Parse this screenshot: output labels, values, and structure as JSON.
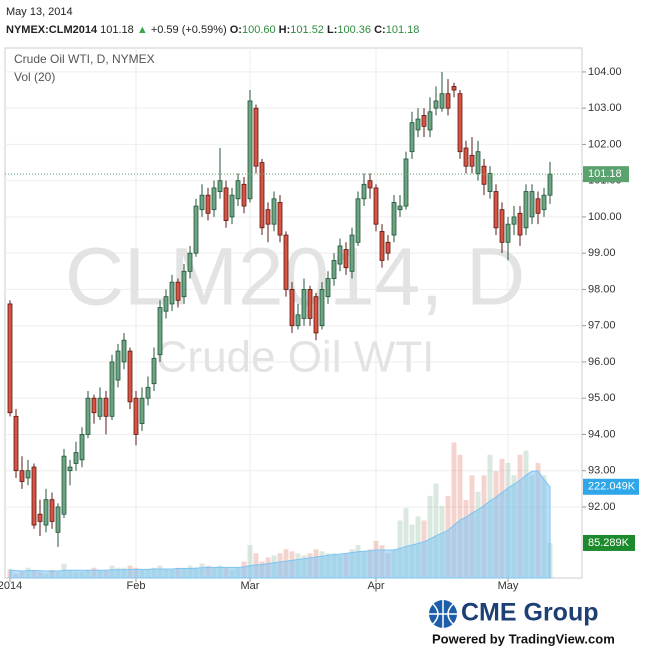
{
  "header": {
    "date": "May 13, 2014",
    "symbol": "NYMEX:CLM2014",
    "last": "101.18",
    "arrow": "▲",
    "change": "+0.59 (+0.59%)",
    "o_key": "O:",
    "o": "100.60",
    "h_key": "H:",
    "h": "101.52",
    "l_key": "L:",
    "l": "100.36",
    "c_key": "C:",
    "c": "101.18"
  },
  "footer": {
    "brand": "CME Group",
    "powered": "Powered by TradingView.com"
  },
  "chart_data": {
    "type": "candlestick",
    "title": "Crude Oil WTI, D, NYMEX",
    "watermark": [
      "CLM2014, D",
      "Crude Oil WTI"
    ],
    "categories": [
      "2014",
      null,
      null,
      null,
      null,
      null,
      null,
      null,
      null,
      null,
      null,
      null,
      null,
      null,
      null,
      null,
      null,
      null,
      null,
      null,
      null,
      "Feb",
      null,
      null,
      null,
      null,
      null,
      null,
      null,
      null,
      null,
      null,
      null,
      null,
      null,
      null,
      null,
      null,
      null,
      null,
      "Mar",
      null,
      null,
      null,
      null,
      null,
      null,
      null,
      null,
      null,
      null,
      null,
      null,
      null,
      null,
      null,
      null,
      null,
      null,
      null,
      null,
      "Apr",
      null,
      null,
      null,
      null,
      null,
      null,
      null,
      null,
      null,
      null,
      null,
      null,
      null,
      null,
      null,
      null,
      null,
      null,
      null,
      null,
      null,
      "May",
      null,
      null,
      null,
      null,
      null,
      null,
      null
    ],
    "open": [
      97.6,
      94.5,
      93.0,
      92.8,
      93.1,
      91.8,
      91.5,
      92.2,
      91.3,
      91.8,
      93.0,
      93.2,
      93.3,
      94.0,
      95.0,
      94.5,
      95.0,
      94.5,
      95.5,
      96.0,
      96.3,
      95.0,
      94.3,
      95.0,
      95.4,
      96.2,
      97.4,
      97.6,
      98.2,
      97.8,
      98.5,
      99.0,
      100.2,
      100.6,
      100.2,
      100.7,
      100.8,
      100.0,
      100.5,
      100.9,
      100.5,
      103.0,
      101.5,
      100.2,
      99.8,
      100.4,
      99.5,
      98.0,
      97.0,
      97.2,
      98.0,
      97.8,
      97.0,
      97.8,
      98.3,
      98.7,
      99.1,
      98.5,
      99.3,
      100.5,
      101.0,
      100.8,
      99.6,
      99.3,
      99.5,
      100.2,
      100.3,
      101.8,
      102.4,
      102.8,
      102.4,
      103.0,
      103.0,
      103.4,
      103.6,
      103.4,
      101.9,
      101.7,
      101.2,
      101.4,
      100.7,
      100.7,
      100.2,
      99.3,
      99.8,
      100.1,
      99.7,
      100.0,
      100.5,
      100.2,
      100.6
    ],
    "high": [
      97.7,
      94.7,
      93.4,
      93.3,
      93.2,
      92.2,
      92.5,
      92.4,
      92.1,
      93.6,
      93.3,
      93.8,
      94.2,
      95.2,
      95.1,
      95.3,
      95.2,
      96.2,
      96.5,
      96.8,
      96.4,
      95.2,
      95.3,
      95.6,
      96.4,
      97.7,
      98.0,
      98.4,
      98.3,
      98.7,
      99.2,
      100.5,
      100.9,
      100.8,
      101.0,
      101.9,
      101.0,
      100.8,
      101.2,
      101.1,
      103.5,
      103.1,
      101.6,
      100.4,
      100.7,
      100.6,
      99.6,
      98.2,
      97.6,
      98.3,
      98.1,
      97.9,
      98.2,
      98.5,
      99.0,
      99.4,
      99.3,
      99.7,
      100.7,
      101.2,
      101.2,
      100.9,
      99.8,
      99.5,
      100.6,
      100.6,
      101.8,
      102.9,
      103.0,
      103.0,
      103.3,
      103.6,
      104.0,
      103.8,
      103.7,
      103.5,
      102.1,
      102.2,
      102.1,
      101.6,
      101.4,
      100.9,
      100.4,
      100.0,
      100.3,
      100.3,
      100.9,
      100.9,
      100.7,
      100.8,
      101.52
    ],
    "low": [
      94.5,
      92.8,
      92.5,
      92.6,
      91.4,
      91.2,
      91.3,
      91.4,
      90.9,
      91.7,
      92.6,
      93.0,
      93.1,
      93.9,
      94.3,
      94.4,
      94.0,
      94.4,
      95.3,
      95.8,
      94.7,
      93.7,
      94.1,
      94.8,
      95.2,
      96.0,
      97.2,
      97.4,
      97.5,
      97.6,
      98.3,
      98.9,
      100.0,
      99.9,
      100.0,
      100.5,
      99.7,
      99.8,
      100.3,
      100.1,
      100.4,
      101.2,
      99.5,
      99.3,
      99.6,
      99.3,
      97.8,
      96.8,
      96.9,
      97.0,
      97.0,
      96.6,
      96.9,
      97.6,
      98.1,
      98.5,
      98.4,
      98.3,
      99.2,
      100.3,
      100.5,
      99.6,
      98.6,
      98.8,
      99.3,
      100.0,
      100.2,
      101.6,
      102.2,
      102.2,
      102.2,
      102.8,
      102.9,
      102.8,
      103.3,
      101.6,
      101.2,
      101.2,
      101.0,
      100.6,
      100.5,
      99.5,
      99.0,
      98.8,
      99.5,
      99.2,
      99.5,
      99.8,
      99.8,
      100.0,
      100.36
    ],
    "close": [
      94.6,
      93.0,
      92.7,
      93.0,
      91.5,
      91.6,
      92.2,
      91.6,
      92.0,
      93.4,
      93.1,
      93.5,
      94.0,
      95.0,
      94.6,
      95.0,
      94.5,
      96.0,
      96.3,
      96.6,
      94.9,
      94.0,
      95.0,
      95.3,
      96.1,
      97.5,
      97.8,
      98.2,
      97.7,
      98.5,
      99.0,
      100.3,
      100.6,
      100.1,
      100.8,
      101.0,
      99.9,
      100.6,
      101.0,
      100.3,
      103.2,
      101.4,
      99.7,
      99.8,
      100.5,
      99.5,
      98.0,
      97.0,
      97.3,
      98.0,
      97.2,
      96.8,
      98.0,
      98.3,
      98.8,
      99.2,
      98.6,
      99.5,
      100.5,
      100.9,
      100.8,
      99.8,
      98.8,
      99.0,
      100.4,
      100.3,
      101.6,
      102.6,
      102.7,
      102.5,
      102.9,
      103.2,
      103.4,
      103.0,
      103.5,
      101.8,
      101.4,
      101.4,
      101.8,
      100.9,
      101.2,
      99.7,
      99.3,
      99.8,
      100.0,
      99.5,
      100.7,
      100.7,
      100.1,
      100.6,
      101.18
    ],
    "up_color": "#6ba583",
    "down_color": "#d75442",
    "ylim": [
      90.04,
      104.66
    ],
    "yticks": [
      {
        "value": 92,
        "label": "92.00"
      },
      {
        "value": 93,
        "label": "93.00"
      },
      {
        "value": 94,
        "label": "94.00"
      },
      {
        "value": 95,
        "label": "95.00"
      },
      {
        "value": 96,
        "label": "96.00"
      },
      {
        "value": 97,
        "label": "97.00"
      },
      {
        "value": 98,
        "label": "98.00"
      },
      {
        "value": 99,
        "label": "99.00"
      },
      {
        "value": 100,
        "label": "100.00"
      },
      {
        "value": 101,
        "label": "101.00"
      },
      {
        "value": 102,
        "label": "102.00"
      },
      {
        "value": 103,
        "label": "103.00"
      },
      {
        "value": 104,
        "label": "104.00"
      }
    ],
    "grid": true,
    "volume": {
      "name": "Vol (20)",
      "axis": "y2",
      "values": [
        20,
        10,
        15,
        25,
        20,
        15,
        10,
        20,
        15,
        35,
        20,
        15,
        15,
        20,
        25,
        20,
        20,
        30,
        25,
        25,
        30,
        25,
        20,
        20,
        25,
        30,
        20,
        20,
        25,
        25,
        30,
        25,
        35,
        30,
        25,
        30,
        25,
        20,
        25,
        40,
        80,
        60,
        40,
        50,
        55,
        60,
        70,
        65,
        60,
        55,
        60,
        70,
        65,
        60,
        60,
        55,
        60,
        70,
        80,
        65,
        70,
        90,
        80,
        60,
        70,
        140,
        170,
        130,
        150,
        140,
        200,
        230,
        175,
        200,
        330,
        300,
        190,
        250,
        210,
        250,
        300,
        260,
        290,
        280,
        250,
        300,
        310,
        250,
        280,
        250,
        85.289
      ],
      "value_labels": [
        null,
        null,
        null,
        null,
        null,
        null,
        null,
        null,
        null,
        null,
        null,
        null,
        null,
        null,
        null,
        null,
        null,
        null,
        null,
        null,
        null,
        null,
        null,
        null,
        null,
        null,
        null,
        null,
        null,
        null,
        null,
        null,
        null,
        null,
        null,
        null,
        null,
        null,
        null,
        null,
        null,
        null,
        null,
        null,
        null,
        null,
        null,
        null,
        null,
        null,
        null,
        null,
        null,
        null,
        null,
        null,
        null,
        null,
        null,
        null,
        null,
        null,
        null,
        null,
        null,
        null,
        null,
        null,
        null,
        null,
        null,
        null,
        null,
        null,
        null,
        null,
        null,
        null,
        null,
        null,
        null,
        null,
        null,
        null,
        null,
        null,
        null,
        null,
        null,
        null,
        "85.289K"
      ]
    },
    "volume_ma": {
      "axis": "y2",
      "color": "#7cc4f2",
      "values": [
        20,
        18,
        17,
        18,
        18,
        18,
        17,
        17,
        17,
        19,
        19,
        19,
        19,
        19,
        19,
        19,
        19,
        20,
        20,
        20,
        21,
        21,
        21,
        21,
        22,
        22,
        22,
        22,
        23,
        23,
        23,
        24,
        25,
        26,
        26,
        26,
        26,
        26,
        26,
        27,
        30,
        32,
        33,
        35,
        37,
        39,
        41,
        43,
        45,
        47,
        49,
        51,
        53,
        55,
        57,
        58,
        60,
        62,
        64,
        65,
        66,
        68,
        68,
        68,
        68,
        72,
        77,
        80,
        84,
        88,
        95,
        103,
        109,
        116,
        129,
        141,
        148,
        158,
        166,
        176,
        188,
        197,
        208,
        219,
        228,
        238,
        250,
        260,
        260,
        240,
        222.049
      ],
      "value_labels": [
        null,
        null,
        null,
        null,
        null,
        null,
        null,
        null,
        null,
        null,
        null,
        null,
        null,
        null,
        null,
        null,
        null,
        null,
        null,
        null,
        null,
        null,
        null,
        null,
        null,
        null,
        null,
        null,
        null,
        null,
        null,
        null,
        null,
        null,
        null,
        null,
        null,
        null,
        null,
        null,
        null,
        null,
        null,
        null,
        null,
        null,
        null,
        null,
        null,
        null,
        null,
        null,
        null,
        null,
        null,
        null,
        null,
        null,
        null,
        null,
        null,
        null,
        null,
        null,
        null,
        null,
        null,
        null,
        null,
        null,
        null,
        null,
        null,
        null,
        null,
        null,
        null,
        null,
        null,
        null,
        null,
        null,
        null,
        null,
        null,
        null,
        null,
        null,
        null,
        null,
        "222.049K"
      ]
    },
    "y2lim": [
      0,
      1290
    ]
  }
}
